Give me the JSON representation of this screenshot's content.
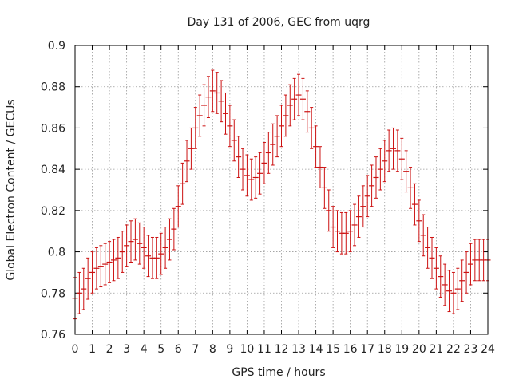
{
  "chart_data": {
    "type": "scatter",
    "title": "Day 131 of 2006, GEC from uqrg",
    "xlabel": "GPS time / hours",
    "ylabel": "Global Electron Content / GECUs",
    "xlim": [
      0,
      24
    ],
    "ylim": [
      0.76,
      0.9
    ],
    "grid": true,
    "legend": "none",
    "error_bars": true,
    "series_color": "#cc1111",
    "x_ticks": [
      "0",
      "1",
      "2",
      "3",
      "4",
      "5",
      "6",
      "7",
      "8",
      "9",
      "10",
      "11",
      "12",
      "13",
      "14",
      "15",
      "16",
      "17",
      "18",
      "19",
      "20",
      "21",
      "22",
      "23",
      "24"
    ],
    "y_ticks": [
      "0.76",
      "0.78",
      "0.8",
      "0.82",
      "0.84",
      "0.86",
      "0.88",
      "0.9"
    ],
    "series": [
      {
        "x": [
          0,
          0.25,
          0.5,
          0.75,
          1,
          1.25,
          1.5,
          1.75,
          2,
          2.25,
          2.5,
          2.75,
          3,
          3.25,
          3.5,
          3.75,
          4,
          4.25,
          4.5,
          4.75,
          5,
          5.25,
          5.5,
          5.75,
          6,
          6.25,
          6.5,
          6.75,
          7,
          7.25,
          7.5,
          7.75,
          8,
          8.25,
          8.5,
          8.75,
          9,
          9.25,
          9.5,
          9.75,
          10,
          10.25,
          10.5,
          10.75,
          11,
          11.25,
          11.5,
          11.75,
          12,
          12.25,
          12.5,
          12.75,
          13,
          13.25,
          13.5,
          13.75,
          14,
          14.25,
          14.5,
          14.75,
          15,
          15.25,
          15.5,
          15.75,
          16,
          16.25,
          16.5,
          16.75,
          17,
          17.25,
          17.5,
          17.75,
          18,
          18.25,
          18.5,
          18.75,
          19,
          19.25,
          19.5,
          19.75,
          20,
          20.25,
          20.5,
          20.75,
          21,
          21.25,
          21.5,
          21.75,
          22,
          22.25,
          22.5,
          22.75,
          23,
          23.25,
          23.5,
          23.75,
          24
        ],
        "y": [
          0.7775,
          0.78,
          0.782,
          0.787,
          0.79,
          0.792,
          0.793,
          0.794,
          0.795,
          0.796,
          0.797,
          0.8,
          0.803,
          0.805,
          0.806,
          0.804,
          0.802,
          0.798,
          0.797,
          0.797,
          0.799,
          0.802,
          0.806,
          0.811,
          0.822,
          0.833,
          0.844,
          0.85,
          0.86,
          0.866,
          0.871,
          0.875,
          0.878,
          0.877,
          0.873,
          0.867,
          0.861,
          0.854,
          0.846,
          0.84,
          0.837,
          0.835,
          0.836,
          0.838,
          0.843,
          0.848,
          0.852,
          0.856,
          0.861,
          0.866,
          0.871,
          0.874,
          0.876,
          0.874,
          0.868,
          0.86,
          0.851,
          0.841,
          0.831,
          0.82,
          0.812,
          0.81,
          0.809,
          0.809,
          0.81,
          0.813,
          0.817,
          0.822,
          0.827,
          0.832,
          0.836,
          0.84,
          0.844,
          0.849,
          0.85,
          0.849,
          0.845,
          0.839,
          0.831,
          0.823,
          0.815,
          0.808,
          0.802,
          0.797,
          0.792,
          0.788,
          0.784,
          0.781,
          0.78,
          0.782,
          0.786,
          0.79,
          0.794,
          0.796,
          0.796,
          0.796,
          0.796
        ],
        "error": 0.01
      }
    ]
  }
}
